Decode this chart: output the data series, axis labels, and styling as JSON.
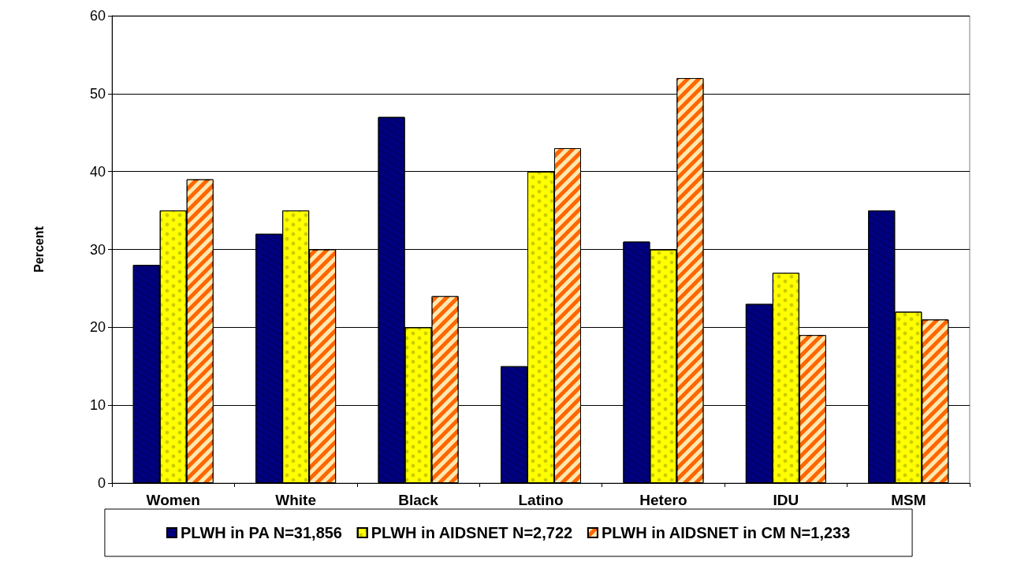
{
  "chart_data": {
    "type": "bar",
    "ylabel": "Percent",
    "categories": [
      "Women",
      "White",
      "Black",
      "Latino",
      "Hetero",
      "IDU",
      "MSM"
    ],
    "series": [
      {
        "name": "PLWH in PA N=31,856",
        "color": "#000080",
        "values": [
          28,
          32,
          47,
          15,
          31,
          23,
          35
        ]
      },
      {
        "name": "PLWH in AIDSNET N=2,722",
        "color": "#ffff00",
        "values": [
          35,
          35,
          20,
          40,
          30,
          27,
          22
        ]
      },
      {
        "name": "PLWH in AIDSNET in CM N=1,233",
        "color": "#ff6600",
        "values": [
          39,
          30,
          24,
          43,
          52,
          19,
          21
        ]
      }
    ],
    "ylim": [
      0,
      60
    ],
    "yticks": [
      0,
      10,
      20,
      30,
      40,
      50,
      60
    ],
    "grid": "y",
    "legend": "bottom"
  }
}
